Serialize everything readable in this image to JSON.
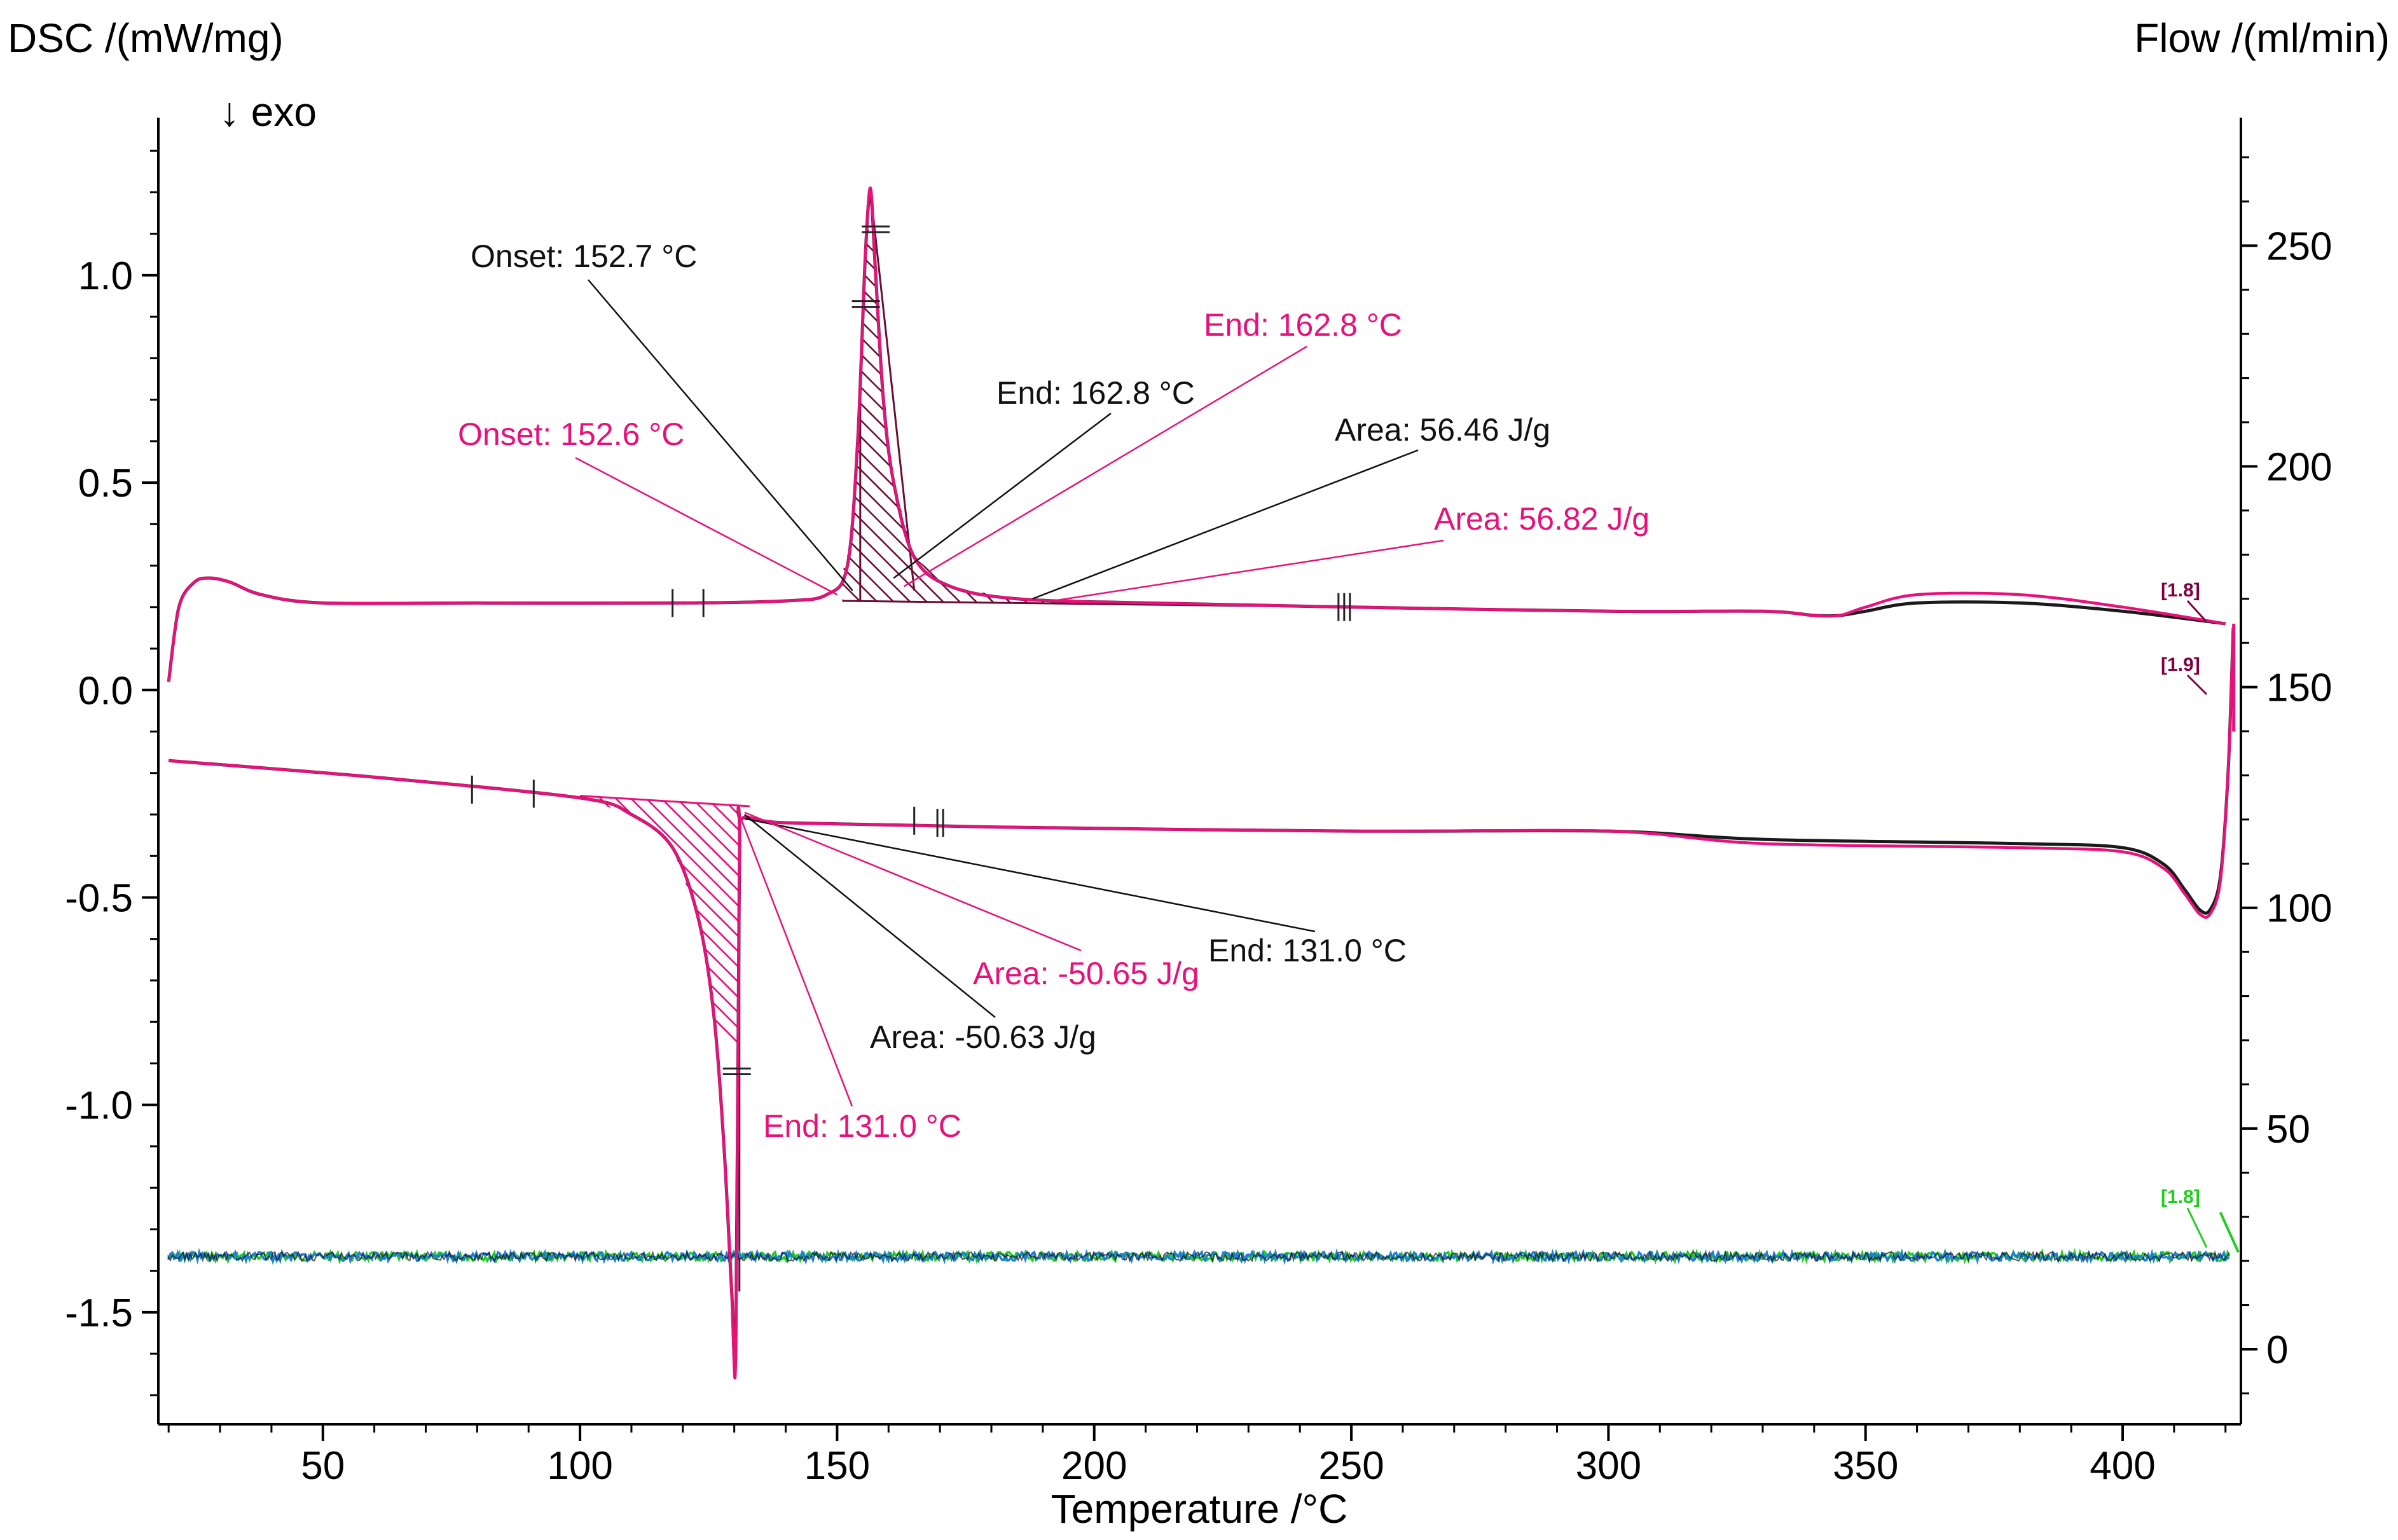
{
  "chart_data": {
    "type": "line",
    "title": "",
    "xlabel": "Temperature /°C",
    "ylabel_left": "DSC /(mW/mg)",
    "ylabel_right": "Flow /(ml/min)",
    "exo_indicator": "↓ exo",
    "xlim": [
      18,
      423
    ],
    "ylim_left": [
      -1.77,
      1.38
    ],
    "ylim_right": [
      -17,
      279
    ],
    "x_ticks": [
      50,
      100,
      150,
      200,
      250,
      300,
      350,
      400
    ],
    "y_left_ticks": [
      1.0,
      0.5,
      0.0,
      -0.5,
      -1.0,
      -1.5
    ],
    "y_left_tick_labels": [
      "1.0",
      "0.5",
      "0.0",
      "-0.5",
      "-1.0",
      "-1.5"
    ],
    "y_right_ticks": [
      250,
      200,
      150,
      100,
      50,
      0
    ],
    "colors": {
      "black_series": "#1a1a1a",
      "pink_series": "#e8107a",
      "green": "#22cc22",
      "blue": "#1e7ed8",
      "marker_dark": "#800040"
    },
    "series": [
      {
        "name": "DSC heating (black)",
        "color": "#1a1a1a",
        "x": [
          20,
          22,
          25,
          28,
          32,
          38,
          50,
          80,
          120,
          140,
          148,
          152,
          154,
          155.5,
          156.5,
          157.5,
          159,
          161,
          165,
          172,
          185,
          210,
          250,
          300,
          330,
          340,
          345,
          350,
          360,
          380,
          400,
          420
        ],
        "y": [
          0.02,
          0.2,
          0.26,
          0.27,
          0.26,
          0.23,
          0.21,
          0.21,
          0.21,
          0.215,
          0.23,
          0.3,
          0.6,
          1.05,
          1.2,
          1.0,
          0.7,
          0.5,
          0.32,
          0.25,
          0.22,
          0.21,
          0.2,
          0.19,
          0.19,
          0.18,
          0.18,
          0.19,
          0.21,
          0.21,
          0.19,
          0.16
        ]
      },
      {
        "name": "DSC heating (pink)",
        "color": "#e8107a",
        "x": [
          20,
          22,
          25,
          28,
          32,
          38,
          50,
          80,
          120,
          140,
          148,
          152,
          154,
          155.5,
          156.5,
          157.5,
          159,
          161,
          165,
          172,
          185,
          210,
          250,
          300,
          330,
          340,
          345,
          350,
          360,
          380,
          400,
          420
        ],
        "y": [
          0.02,
          0.2,
          0.26,
          0.27,
          0.26,
          0.23,
          0.21,
          0.21,
          0.21,
          0.215,
          0.23,
          0.3,
          0.6,
          1.05,
          1.21,
          1.0,
          0.7,
          0.5,
          0.32,
          0.25,
          0.22,
          0.21,
          0.2,
          0.19,
          0.19,
          0.18,
          0.18,
          0.2,
          0.23,
          0.23,
          0.2,
          0.16
        ]
      },
      {
        "name": "DSC cooling (black)",
        "color": "#1a1a1a",
        "x": [
          20,
          60,
          100,
          110,
          118,
          123,
          126,
          128,
          129.5,
          130.3,
          131,
          131.5,
          140,
          180,
          250,
          300,
          330,
          380,
          400,
          408,
          412,
          415,
          417,
          419,
          420.5,
          421.5
        ],
        "y": [
          -0.17,
          -0.21,
          -0.26,
          -0.3,
          -0.38,
          -0.55,
          -0.78,
          -1.1,
          -1.45,
          -1.58,
          -0.4,
          -0.31,
          -0.32,
          -0.33,
          -0.34,
          -0.34,
          -0.36,
          -0.37,
          -0.38,
          -0.42,
          -0.48,
          -0.53,
          -0.53,
          -0.45,
          -0.2,
          0.15
        ],
        "y_pink": [
          -0.17,
          -0.21,
          -0.26,
          -0.3,
          -0.38,
          -0.55,
          -0.78,
          -1.1,
          -1.45,
          -1.6,
          -0.4,
          -0.31,
          -0.32,
          -0.33,
          -0.34,
          -0.34,
          -0.37,
          -0.38,
          -0.39,
          -0.43,
          -0.49,
          -0.54,
          -0.54,
          -0.46,
          -0.2,
          0.15
        ]
      },
      {
        "name": "Flow (right axis, noisy baseline)",
        "color": "#1e7ed8",
        "x": [
          20,
          421
        ],
        "y_right": [
          21,
          21
        ]
      }
    ],
    "annotations_black": [
      {
        "text": "Onset: 152.7 °C"
      },
      {
        "text": "End: 162.8 °C"
      },
      {
        "text": "Area: 56.46 J/g"
      },
      {
        "text": "End: 131.0 °C"
      },
      {
        "text": "Area: -50.63 J/g"
      }
    ],
    "annotations_pink": [
      {
        "text": "End: 162.8 °C"
      },
      {
        "text": "Onset: 152.6 °C"
      },
      {
        "text": "Area: 56.82 J/g"
      },
      {
        "text": "Area: -50.65 J/g"
      },
      {
        "text": "End: 131.0 °C"
      }
    ],
    "segment_markers": [
      {
        "text": "[1.8]",
        "color": "#800040"
      },
      {
        "text": "[1.9]",
        "color": "#800040"
      },
      {
        "text": "[1.8]",
        "color": "#22cc22"
      }
    ]
  }
}
